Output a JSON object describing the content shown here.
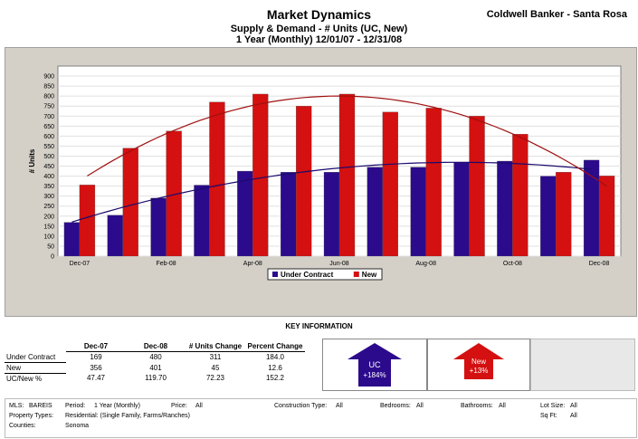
{
  "header": {
    "title": "Market Dynamics",
    "subtitle1": "Supply & Demand - # Units (UC, New)",
    "subtitle2": "1 Year (Monthly) 12/01/07 - 12/31/08",
    "brand": "Coldwell Banker - Santa Rosa"
  },
  "chart_data": {
    "type": "bar",
    "ylabel": "# Units",
    "ylim": [
      0,
      950
    ],
    "yticks": [
      0,
      50,
      100,
      150,
      200,
      250,
      300,
      350,
      400,
      450,
      500,
      550,
      600,
      650,
      700,
      750,
      800,
      850,
      900
    ],
    "categories": [
      "Dec-07",
      "Jan-08",
      "Feb-08",
      "Mar-08",
      "Apr-08",
      "May-08",
      "Jun-08",
      "Jul-08",
      "Aug-08",
      "Sep-08",
      "Oct-08",
      "Nov-08",
      "Dec-08"
    ],
    "xtick_labels": [
      "Dec-07",
      "",
      "Feb-08",
      "",
      "Apr-08",
      "",
      "Jun-08",
      "",
      "Aug-08",
      "",
      "Oct-08",
      "",
      "Dec-08"
    ],
    "series": [
      {
        "name": "Under Contract",
        "color": "#2b0a8c",
        "values": [
          169,
          205,
          290,
          355,
          425,
          420,
          420,
          445,
          445,
          470,
          475,
          400,
          480
        ]
      },
      {
        "name": "New",
        "color": "#d41010",
        "values": [
          356,
          540,
          625,
          770,
          810,
          750,
          810,
          720,
          740,
          700,
          610,
          420,
          401
        ]
      }
    ],
    "trendlines": true,
    "grid": true,
    "legend_position": "bottom"
  },
  "key_info": {
    "title": "KEY INFORMATION",
    "columns": [
      "",
      "Dec-07",
      "Dec-08",
      "# Units Change",
      "Percent Change"
    ],
    "rows": [
      [
        "Under Contract",
        "169",
        "480",
        "311",
        "184.0"
      ],
      [
        "New",
        "356",
        "401",
        "45",
        "12.6"
      ],
      [
        "UC/New %",
        "47.47",
        "119.70",
        "72.23",
        "152.2"
      ]
    ],
    "uc_label": "UC",
    "uc_change": "+184%",
    "uc_color": "#2b0a8c",
    "new_label": "New",
    "new_change": "+13%",
    "new_color": "#d41010"
  },
  "filters": {
    "mls_label": "MLS:",
    "mls_value": "BAREIS",
    "period_label": "Period:",
    "period_value": "1 Year (Monthly)",
    "price_label": "Price:",
    "price_value": "All",
    "construction_label": "Construction Type:",
    "construction_value": "All",
    "bedrooms_label": "Bedrooms:",
    "bedrooms_value": "All",
    "bathrooms_label": "Bathrooms:",
    "bathrooms_value": "All",
    "lotsize_label": "Lot Size:",
    "lotsize_value": "All",
    "sqft_label": "Sq Ft:",
    "sqft_value": "All",
    "proptype_label": "Property Types:",
    "proptype_value": "Residential: (Single Family, Farms/Ranches)",
    "counties_label": "Counties:",
    "counties_value": "Sonoma"
  }
}
